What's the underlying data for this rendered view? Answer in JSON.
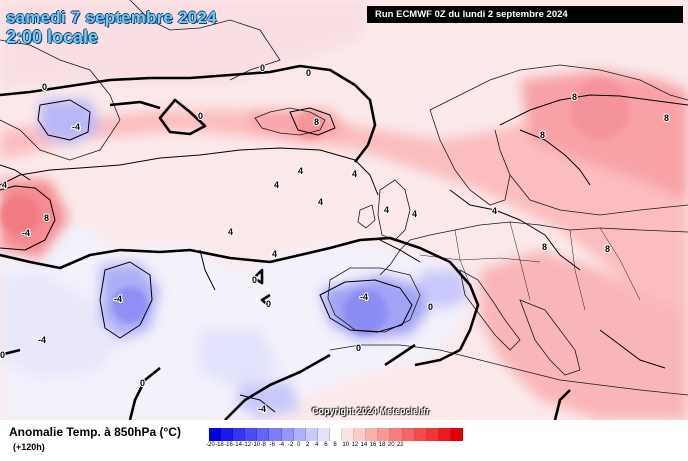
{
  "header": {
    "date": "samedi 7 septembre 2024",
    "time": "2:00 locale",
    "run": "Run ECMWF 0Z du lundi 2 septembre 2024"
  },
  "copyright": "Copyright 2024 Meteociel.fr",
  "footer": {
    "variable": "Anomalie Temp. à 850hPa (°C)",
    "lead": "(+120h)"
  },
  "legend": {
    "values": [
      "-20",
      "-18",
      "-16",
      "-14",
      "-12",
      "-10",
      "-8",
      "-6",
      "-4",
      "-2",
      "0",
      "2",
      "4",
      "6",
      "8",
      "10",
      "12",
      "14",
      "16",
      "18",
      "20",
      "22"
    ],
    "colors": [
      "#0000e0",
      "#1a1aee",
      "#3434f2",
      "#4c4cf4",
      "#6464f6",
      "#7c7cf8",
      "#9696fa",
      "#b0b0fb",
      "#cacafc",
      "#e2e2fd",
      "#ffffff",
      "#fde2e2",
      "#fccaca",
      "#fbb0b0",
      "#fa9696",
      "#f87c7c",
      "#f66464",
      "#f44c4c",
      "#f23434",
      "#ee1a1a",
      "#e00000"
    ]
  },
  "contour_labels": [
    {
      "value": "0"
    },
    {
      "value": "0"
    },
    {
      "value": "0"
    },
    {
      "value": "0"
    },
    {
      "value": "0"
    },
    {
      "value": "0"
    },
    {
      "value": "0"
    },
    {
      "value": "0"
    },
    {
      "value": "0"
    },
    {
      "value": "0"
    },
    {
      "value": "4"
    },
    {
      "value": "4"
    },
    {
      "value": "4"
    },
    {
      "value": "4"
    },
    {
      "value": "4"
    },
    {
      "value": "4"
    },
    {
      "value": "4"
    },
    {
      "value": "4"
    },
    {
      "value": "4"
    },
    {
      "value": "4"
    },
    {
      "value": "8"
    },
    {
      "value": "8"
    },
    {
      "value": "8"
    },
    {
      "value": "8"
    },
    {
      "value": "8"
    },
    {
      "value": "8"
    },
    {
      "value": "8"
    },
    {
      "value": "-4"
    },
    {
      "value": "-4"
    },
    {
      "value": "-4"
    },
    {
      "value": "-4"
    },
    {
      "value": "-4"
    },
    {
      "value": "-4"
    }
  ],
  "colors": {
    "warm_light": "#fde2e2",
    "warm": "#fbb0b0",
    "warm_strong": "#f87c7c",
    "cool_light": "#e2e2fd",
    "cool": "#b0b0fb",
    "cool_strong": "#9696fa"
  }
}
